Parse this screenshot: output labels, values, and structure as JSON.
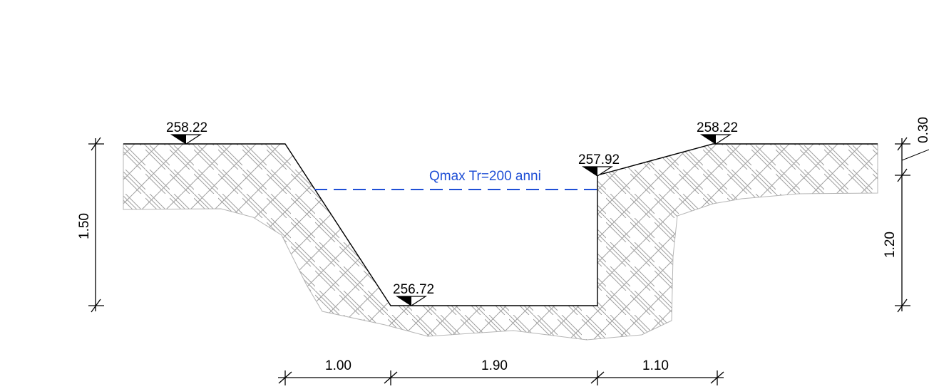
{
  "elevations": {
    "left_bank": "258.22",
    "channel_bottom": "256.72",
    "right_edge": "257.92",
    "right_bank": "258.22"
  },
  "water_level": {
    "label": "Qmax Tr=200 anni",
    "color": "#1f4fd6"
  },
  "dimensions": {
    "left_height": "1.50",
    "right_upper_height": "0.30",
    "right_lower_height": "1.20",
    "bottom_widths": [
      "1.00",
      "1.90",
      "1.10"
    ]
  },
  "colors": {
    "profile_line": "#000000",
    "hatch": "#9a9a9a",
    "soil_outline": "#b5b5b5",
    "water_line": "#1f4fd6"
  }
}
